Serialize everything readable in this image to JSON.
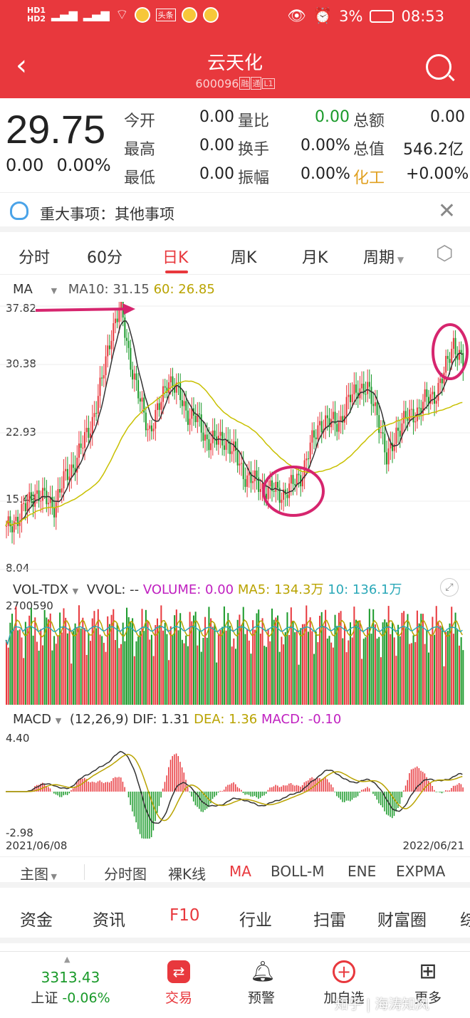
{
  "status": {
    "left": "46 46",
    "battery": "3%",
    "time": "08:53",
    "news_tag": "头条"
  },
  "header": {
    "title": "云天化",
    "code": "600096",
    "tag1": "融",
    "tag2": "通",
    "tag3": "L1"
  },
  "quote": {
    "price": "29.75",
    "change": "0.00",
    "change_pct": "0.00%",
    "rows": [
      [
        {
          "l": "今开",
          "v": "0.00"
        },
        {
          "l": "量比",
          "v": "0.00"
        },
        {
          "l": "总额",
          "v": "0.00"
        }
      ],
      [
        {
          "l": "最高",
          "v": "0.00"
        },
        {
          "l": "换手",
          "v": "0.00%"
        },
        {
          "l": "总值",
          "v": "546.2亿"
        }
      ],
      [
        {
          "l": "最低",
          "v": "0.00"
        },
        {
          "l": "振幅",
          "v": "0.00%"
        },
        {
          "l": "化工",
          "v": "+0.00%"
        }
      ]
    ]
  },
  "notice": {
    "text": "重大事项：其他事项",
    "close": "✕"
  },
  "period_tabs": [
    "分时",
    "60分",
    "日K",
    "周K",
    "月K",
    "周期"
  ],
  "ma_label": {
    "name": "MA",
    "ma10": "MA10: 31.15",
    "ma60": "60: 26.85"
  },
  "price_axis": [
    "37.82",
    "30.38",
    "22.93",
    "15.49",
    "8.04"
  ],
  "vol_label": {
    "name": "VOL-TDX",
    "vvol": "VVOL: --",
    "volume": "VOLUME: 0.00",
    "ma5": "MA5: 134.3万",
    "ma10": "10: 136.1万"
  },
  "vol_axis": "2700590",
  "macd_label": {
    "name": "MACD",
    "params": "(12,26,9)",
    "dif": "DIF: 1.31",
    "dea": "DEA: 1.36",
    "macd": "MACD: -0.10"
  },
  "macd_axis": [
    "4.40",
    "-2.98"
  ],
  "dates": [
    "2021/06/08",
    "2022/06/21"
  ],
  "indicator_tabs": [
    "主图",
    "分时图",
    "裸K线",
    "MA",
    "BOLL-M",
    "ENE",
    "EXPMA"
  ],
  "section_tabs": [
    "资金",
    "资讯",
    "F10",
    "行业",
    "扫雷",
    "财富圈",
    "综"
  ],
  "bottom": {
    "index_value": "3313.43",
    "index_name": "上证",
    "index_change": "-0.06%",
    "trade": "交易",
    "alert": "预警",
    "add": "加自选",
    "more": "更多"
  },
  "watermark": "知乎 | 海涛知风",
  "colors": {
    "accent": "#e8383d",
    "up": "#e8383d",
    "down": "#1a9a2a",
    "ma60": "#c8c000",
    "annotation": "#d6256e"
  },
  "chart_data": {
    "type": "candlestick",
    "x_range": [
      "2021/06/08",
      "2022/06/21"
    ],
    "ylim": [
      8.04,
      37.82
    ],
    "close_approx": [
      12.5,
      14,
      15,
      17,
      16,
      15.5,
      18,
      20,
      22,
      25,
      29,
      35,
      37.5,
      32,
      27,
      24,
      26,
      30,
      28,
      26,
      25,
      23,
      22.5,
      23,
      21,
      19,
      18,
      17.5,
      17,
      16.8,
      17.5,
      19,
      22,
      25,
      24.5,
      25,
      27,
      29,
      28,
      26,
      20,
      24,
      25,
      26,
      27,
      28,
      30,
      34,
      31
    ]
  }
}
